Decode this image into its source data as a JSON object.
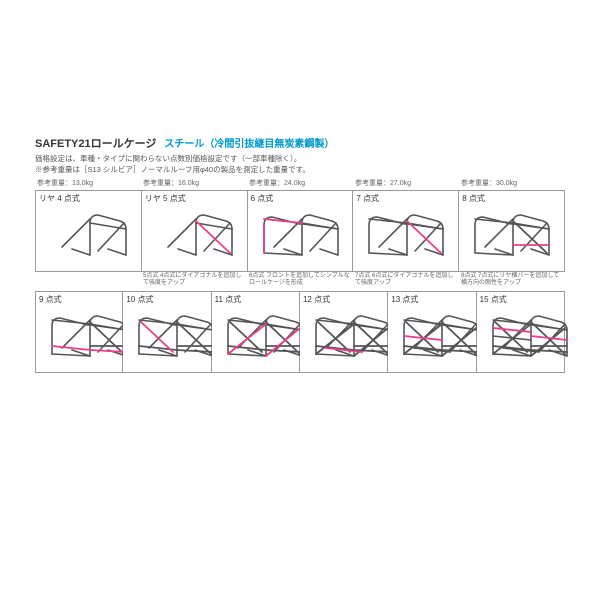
{
  "header": {
    "title_main": "SAFETY21ロールケージ",
    "title_sub": "スチール（冷間引抜継目無炭素鋼製）",
    "desc1": "価格設定は、車種・タイプに関わらない点数別価格設定です（一部車種除く）。",
    "desc2": "※参考重量は［S13 シルビア］ノーマルルーフ用φ40の製品を測定した重量です。"
  },
  "colors": {
    "frame": "#555555",
    "accent": "#e83e8c",
    "border": "#999999",
    "text": "#333333",
    "subtext": "#666666",
    "brand": "#0099cc"
  },
  "style": {
    "frame_width": 1.6,
    "accent_width": 1.8
  },
  "row1": {
    "weights": [
      "参考重量：13.0kg",
      "参考重量：16.0kg",
      "参考重量：24.0kg",
      "参考重量：27.0kg",
      "参考重量：30.0kg"
    ],
    "cells": [
      {
        "label": "リヤ 4 点式",
        "type": "rear4"
      },
      {
        "label": "リヤ 5 点式",
        "type": "rear5"
      },
      {
        "label": "6 点式",
        "type": "p6"
      },
      {
        "label": "7 点式",
        "type": "p7"
      },
      {
        "label": "8 点式",
        "type": "p8"
      }
    ],
    "captions": [
      "",
      "5点式 4点式にダイアゴナルを追加して強度をアップ",
      "6点式 フロントを追加してシンプルなロールケージを形成",
      "7点式 6点式にダイアゴナルを追加して強度アップ",
      "8点式 7点式にリヤ横バーを追加して横方向の剛性をアップ"
    ]
  },
  "row2": {
    "cells": [
      {
        "label": "9 点式",
        "type": "p9"
      },
      {
        "label": "10 点式",
        "type": "p10"
      },
      {
        "label": "11 点式",
        "type": "p11"
      },
      {
        "label": "12 点式",
        "type": "p12"
      },
      {
        "label": "13 点式",
        "type": "p13"
      },
      {
        "label": "15 点式",
        "type": "p15"
      }
    ]
  }
}
